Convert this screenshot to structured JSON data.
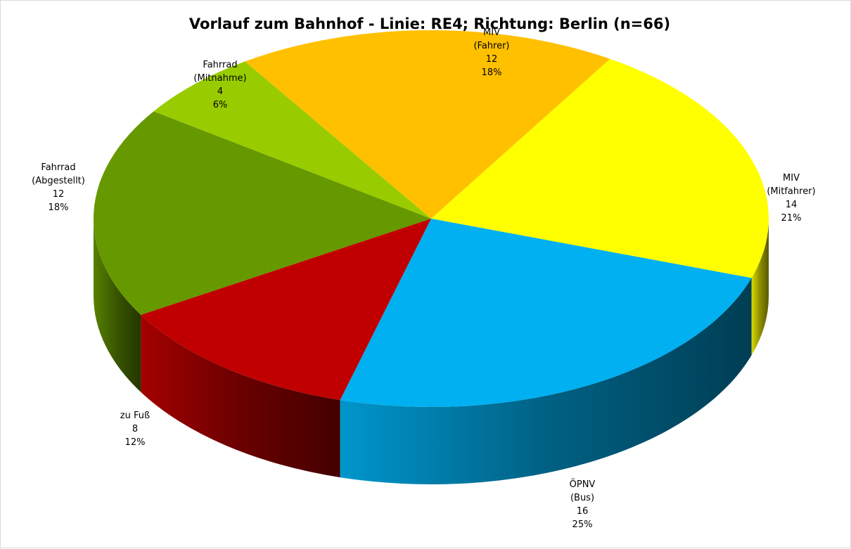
{
  "chart_data": {
    "type": "pie",
    "title": "Vorlauf zum Bahnhof - Linie: RE4; Richtung: Berlin (n=66)",
    "slices": [
      {
        "label": [
          "MIV",
          "(Mitfahrer)"
        ],
        "value": 14,
        "percent": "21%",
        "color": "#ffff00"
      },
      {
        "label": [
          "ÖPNV",
          "(Bus)"
        ],
        "value": 16,
        "percent": "25%",
        "color": "#00b0f0"
      },
      {
        "label": [
          "zu Fuß"
        ],
        "value": 8,
        "percent": "12%",
        "color": "#c00000"
      },
      {
        "label": [
          "Fahrrad",
          "(Abgestellt)"
        ],
        "value": 12,
        "percent": "18%",
        "color": "#669900"
      },
      {
        "label": [
          "Fahrrad",
          "(Mitnahme)"
        ],
        "value": 4,
        "percent": "6%",
        "color": "#99cc00"
      },
      {
        "label": [
          "MIV",
          "(Fahrer)"
        ],
        "value": 12,
        "percent": "18%",
        "color": "#ffc000"
      }
    ]
  }
}
